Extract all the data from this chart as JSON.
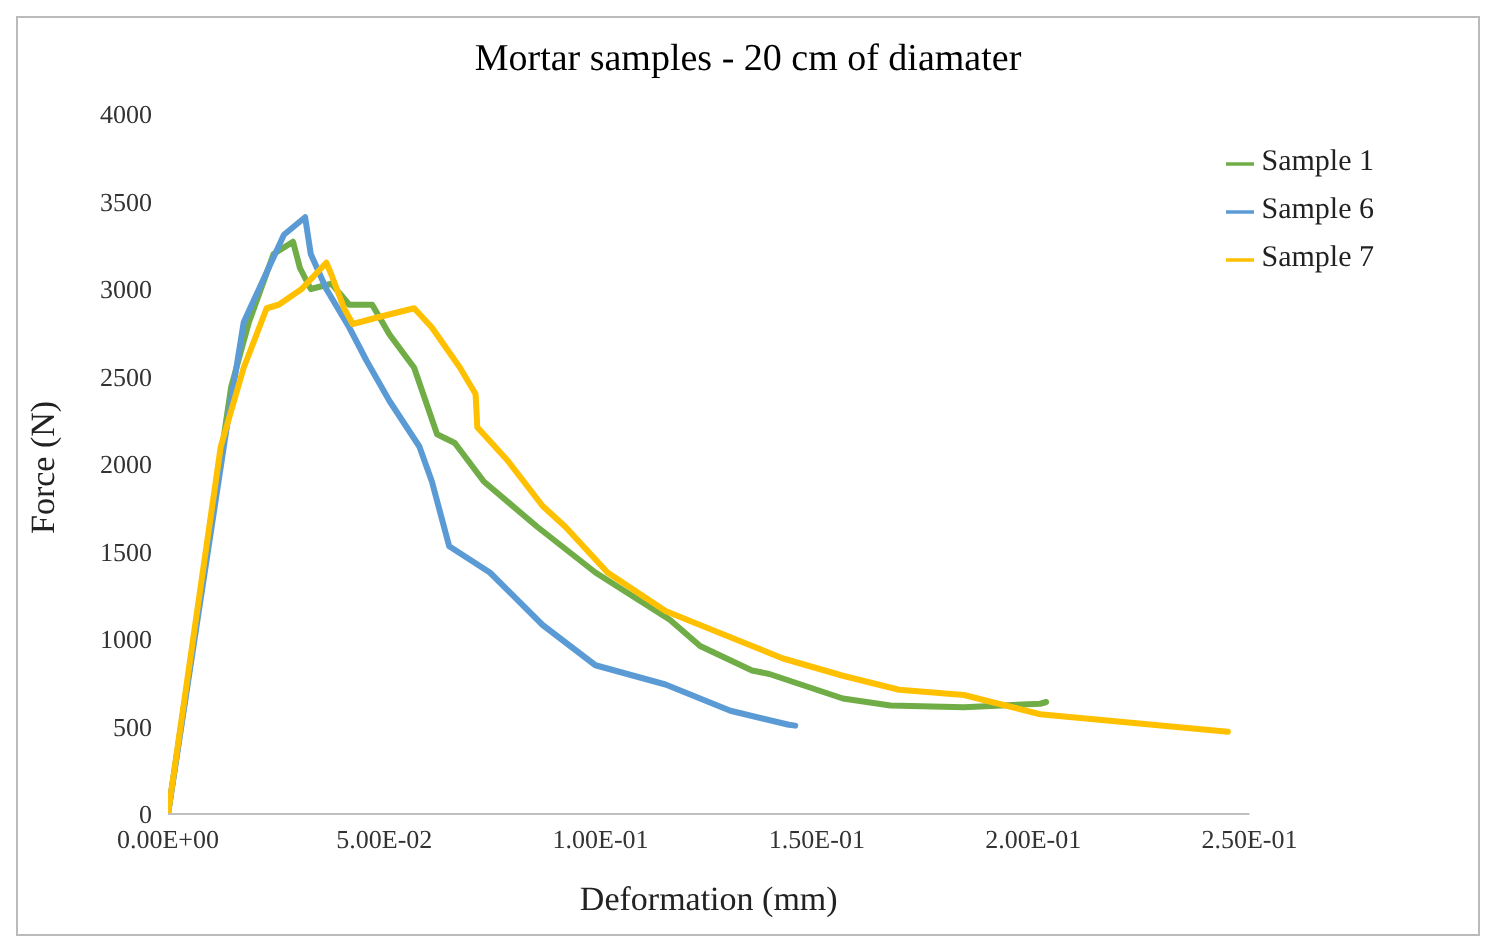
{
  "chart_data": {
    "type": "line",
    "title": "Mortar samples - 20 cm of diamater",
    "xlabel": "Deformation (mm)",
    "ylabel": "Force (N)",
    "xlim": [
      0,
      0.25
    ],
    "xticks": [
      {
        "value": 0,
        "label": "0.00E+00"
      },
      {
        "value": 0.05,
        "label": "5.00E-02"
      },
      {
        "value": 0.1,
        "label": "1.00E-01"
      },
      {
        "value": 0.15,
        "label": "1.50E-01"
      },
      {
        "value": 0.2,
        "label": "2.00E-01"
      },
      {
        "value": 0.25,
        "label": "2.50E-01"
      }
    ],
    "ylim": [
      0,
      4000
    ],
    "yticks": [
      0,
      500,
      1000,
      1500,
      2000,
      2500,
      3000,
      3500,
      4000
    ],
    "grid": false,
    "legend": "top right",
    "series": [
      {
        "name": "Sample 1",
        "color": "#70ad47",
        "x": [
          0,
          0.0146,
          0.0187,
          0.0244,
          0.0289,
          0.0305,
          0.033,
          0.0378,
          0.0419,
          0.0472,
          0.0512,
          0.0569,
          0.0622,
          0.0663,
          0.073,
          0.0854,
          0.0988,
          0.116,
          0.123,
          0.135,
          0.139,
          0.156,
          0.167,
          0.184,
          0.2016,
          0.203
        ],
        "values": [
          0,
          2440,
          2810,
          3200,
          3270,
          3120,
          3000,
          3030,
          2910,
          2910,
          2740,
          2550,
          2170,
          2120,
          1900,
          1640,
          1380,
          1110,
          960,
          820,
          800,
          660,
          620,
          610,
          630,
          640
        ]
      },
      {
        "name": "Sample 6",
        "color": "#5b9bd5",
        "x": [
          0,
          0.0134,
          0.0175,
          0.0268,
          0.0317,
          0.033,
          0.0366,
          0.0419,
          0.0459,
          0.0512,
          0.0581,
          0.061,
          0.065,
          0.0744,
          0.0866,
          0.0988,
          0.115,
          0.13,
          0.1435,
          0.145
        ],
        "values": [
          0,
          2180,
          2810,
          3310,
          3410,
          3200,
          3000,
          2780,
          2590,
          2360,
          2100,
          1900,
          1530,
          1380,
          1080,
          850,
          740,
          590,
          510,
          505
        ]
      },
      {
        "name": "Sample 7",
        "color": "#ffc000",
        "x": [
          0,
          0.0122,
          0.0175,
          0.0228,
          0.0256,
          0.0309,
          0.0366,
          0.0378,
          0.0407,
          0.0427,
          0.0488,
          0.0569,
          0.061,
          0.0675,
          0.0711,
          0.0715,
          0.0785,
          0.0866,
          0.0919,
          0.1016,
          0.115,
          0.127,
          0.142,
          0.156,
          0.169,
          0.184,
          0.2016,
          0.245
        ],
        "values": [
          0,
          2100,
          2550,
          2890,
          2910,
          3000,
          3150,
          3080,
          2890,
          2800,
          2840,
          2890,
          2780,
          2550,
          2400,
          2210,
          2020,
          1760,
          1640,
          1380,
          1160,
          1040,
          890,
          790,
          710,
          680,
          570,
          470
        ]
      }
    ]
  }
}
